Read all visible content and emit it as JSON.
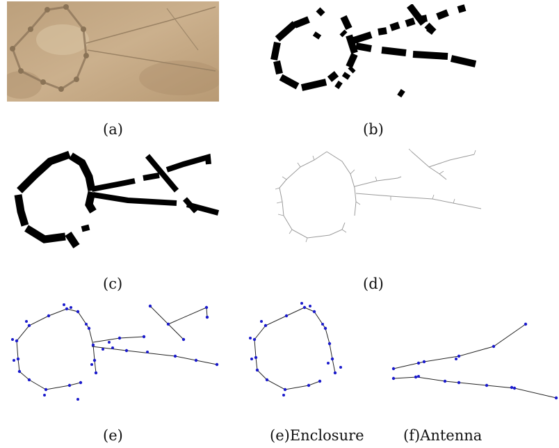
{
  "figure": {
    "captions": {
      "a": "(a)",
      "b": "(b)",
      "c": "(c)",
      "d": "(d)",
      "e": "(e)",
      "e_enclosure": "(e)Enclosure",
      "f_antenna": "(f)Antenna"
    }
  },
  "colors": {
    "photo_background": "#c8ab86",
    "segment_black": "#000000",
    "skeleton_gray": "#9a9a9a",
    "graph_node_blue": "#1a1acc",
    "graph_edge": "#222222"
  }
}
